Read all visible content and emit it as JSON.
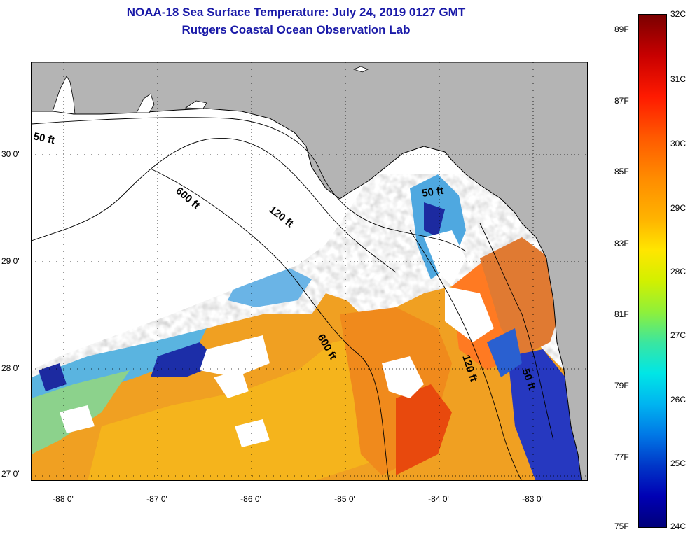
{
  "header": {
    "title": "NOAA-18 Sea Surface Temperature:  July 24, 2019 0127 GMT",
    "subtitle": "Rutgers Coastal Ocean Observation Lab"
  },
  "map": {
    "lon_labels": [
      "-88 0'",
      "-87 0'",
      "-86 0'",
      "-85 0'",
      "-84 0'",
      "-83 0'"
    ],
    "lat_labels": [
      "30 0'",
      "29 0'",
      "28 0'",
      "27 0'"
    ],
    "depth_contours": [
      "50 ft",
      "600 ft",
      "120 ft",
      "50 ft",
      "600 ft",
      "120 ft",
      "50 ft"
    ],
    "land_color": "#b4b4b4",
    "cloud_color": "#ffffff"
  },
  "colorbar": {
    "celsius": [
      "32C",
      "31C",
      "30C",
      "29C",
      "28C",
      "27C",
      "26C",
      "25C",
      "24C"
    ],
    "fahrenheit": [
      "89F",
      "87F",
      "85F",
      "83F",
      "81F",
      "79F",
      "77F",
      "75F"
    ]
  }
}
